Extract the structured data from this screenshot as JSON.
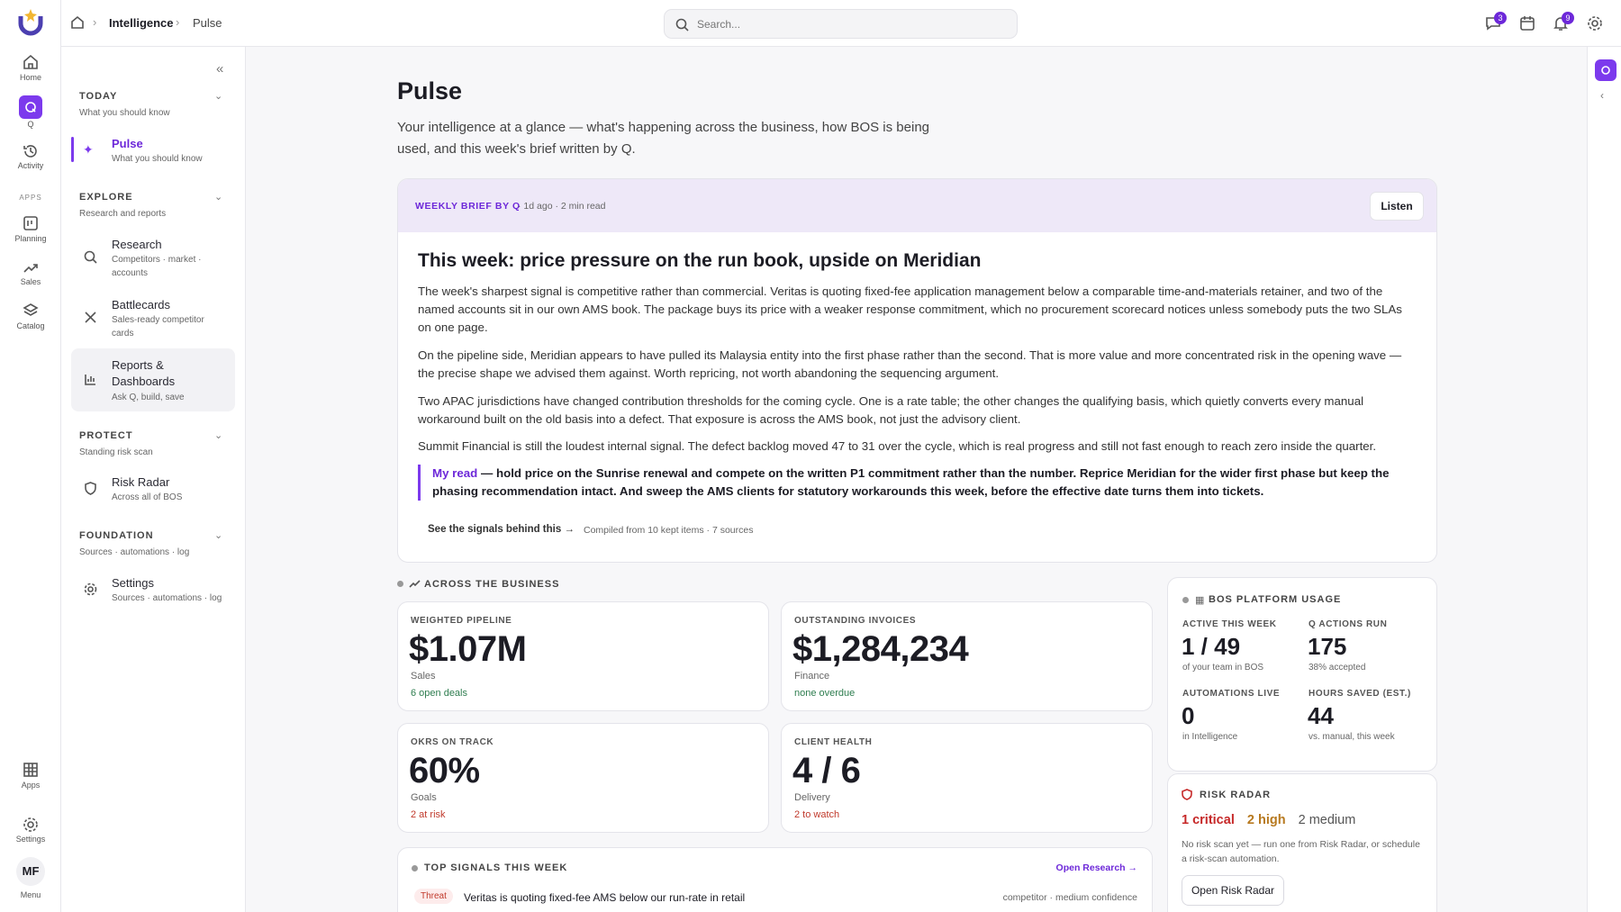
{
  "topbar": {
    "breadcrumb": [
      "Intelligence",
      "Pulse"
    ],
    "search": "Search...",
    "message_badge": 3,
    "notification_badge": 9
  },
  "rail": {
    "home": "Home",
    "q": "Q",
    "activity": "Activity",
    "apps_heading": "APPS",
    "planning": "Planning",
    "sales": "Sales",
    "catalog": "Catalog",
    "apps": "Apps",
    "settings": "Settings",
    "avatar": "MF",
    "menu": "Menu"
  },
  "sidebar": {
    "sections": [
      {
        "title": "TODAY",
        "subtitle": "What you should know",
        "items": [
          {
            "label": "Pulse",
            "sub": "What you should know"
          }
        ]
      },
      {
        "title": "EXPLORE",
        "subtitle": "Research and reports",
        "items": [
          {
            "label": "Research",
            "sub": "Competitors · market · accounts"
          },
          {
            "label": "Battlecards",
            "sub": "Sales-ready competitor cards"
          },
          {
            "label": "Reports & Dashboards",
            "sub": "Ask Q, build, save"
          }
        ]
      },
      {
        "title": "PROTECT",
        "subtitle": "Standing risk scan",
        "items": [
          {
            "label": "Risk Radar",
            "sub": "Across all of BOS"
          }
        ]
      },
      {
        "title": "FOUNDATION",
        "subtitle": "Sources · automations · log",
        "items": [
          {
            "label": "Settings",
            "sub": "Sources · automations · log"
          }
        ]
      }
    ]
  },
  "page": {
    "title": "Pulse",
    "intro": "Your intelligence at a glance — what's happening across the business, how BOS is being used, and this week's brief written by Q."
  },
  "brief": {
    "label": "WEEKLY BRIEF BY Q",
    "meta": "· 1d ago · 2 min read",
    "listen": "Listen",
    "headline": "This week: price pressure on the run book, upside on Meridian",
    "paragraphs": [
      "The week's sharpest signal is competitive rather than commercial. Veritas is quoting fixed-fee application management below a comparable time-and-materials retainer, and two of the named accounts sit in our own AMS book. The package buys its price with a weaker response commitment, which no procurement scorecard notices unless somebody puts the two SLAs on one page.",
      "On the pipeline side, Meridian appears to have pulled its Malaysia entity into the first phase rather than the second. That is more value and more concentrated risk in the opening wave — the precise shape we advised them against. Worth repricing, not worth abandoning the sequencing argument.",
      "Two APAC jurisdictions have changed contribution thresholds for the coming cycle. One is a rate table; the other changes the qualifying basis, which quietly converts every manual workaround built on the old basis into a defect. That exposure is across the AMS book, not just the advisory client.",
      "Summit Financial is still the loudest internal signal. The defect backlog moved 47 to 31 over the cycle, which is real progress and still not fast enough to reach zero inside the quarter."
    ],
    "my_read_lead": "My read",
    "my_read": "— hold price on the Sunrise renewal and compete on the written P1 commitment rather than the number. Reprice Meridian for the wider first phase but keep the phasing recommendation intact. And sweep the AMS clients for statutory workarounds this week, before the effective date turns them into tickets.",
    "signals_link": "See the signals behind this →",
    "compiled": "Compiled from 10 kept items · 7 sources"
  },
  "business": {
    "title": "ACROSS THE BUSINESS",
    "cards": [
      {
        "label": "WEIGHTED PIPELINE",
        "value": "$1.07M",
        "area": "Sales",
        "note": "6 open deals",
        "note_color": "#2e7d4f"
      },
      {
        "label": "OUTSTANDING INVOICES",
        "value": "$1,284,234",
        "area": "Finance",
        "note": "none overdue",
        "note_color": "#2e7d4f"
      },
      {
        "label": "OKRS ON TRACK",
        "value": "60%",
        "area": "Goals",
        "note": "2 at risk",
        "note_color": "#c0392b"
      },
      {
        "label": "CLIENT HEALTH",
        "value": "4 / 6",
        "area": "Delivery",
        "note": "2 to watch",
        "note_color": "#c0392b"
      }
    ]
  },
  "usage": {
    "title": "BOS PLATFORM USAGE",
    "stats": [
      {
        "label": "ACTIVE THIS WEEK",
        "value": "1 / 49",
        "sub": "of your team in BOS"
      },
      {
        "label": "Q ACTIONS RUN",
        "value": 175,
        "sub": "38% accepted"
      },
      {
        "label": "AUTOMATIONS LIVE",
        "value": 0,
        "sub": "in Intelligence"
      },
      {
        "label": "HOURS SAVED (EST.)",
        "value": 44,
        "sub": "vs. manual, this week"
      }
    ]
  },
  "risk": {
    "title": "RISK RADAR",
    "counts": [
      {
        "text": "1 critical",
        "color": "#c62828"
      },
      {
        "text": "2 high",
        "color": "#b7791f"
      },
      {
        "text": "2 medium",
        "color": "#555555"
      }
    ],
    "note": "No risk scan yet — run one from Risk Radar, or schedule a risk-scan automation.",
    "button": "Open Risk Radar"
  },
  "signals": {
    "title": "TOP SIGNALS THIS WEEK",
    "link": "Open Research →",
    "rows": [
      {
        "tag": "Threat",
        "text": "Veritas is quoting fixed-fee AMS below our run-rate in retail",
        "meta": "competitor · medium confidence"
      }
    ]
  }
}
